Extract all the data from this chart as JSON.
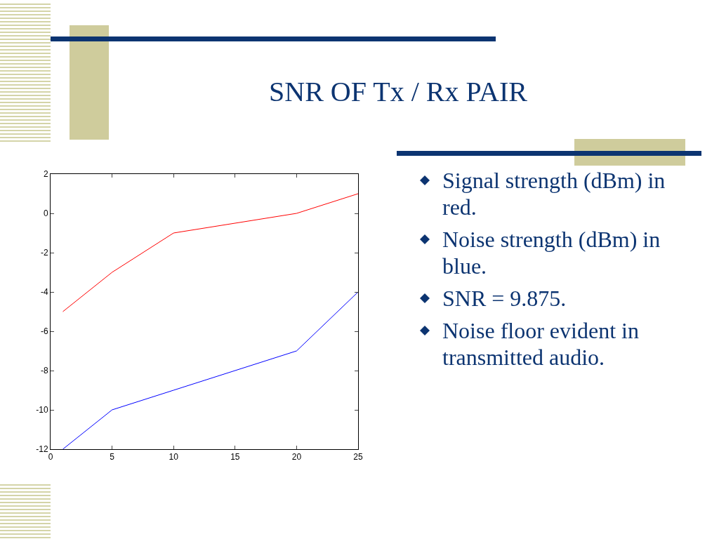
{
  "chart_data": {
    "type": "line",
    "title": "SNR OF Tx / Rx PAIR",
    "x": [
      1,
      5,
      10,
      20,
      25
    ],
    "series": [
      {
        "color": "#ff0000",
        "values": [
          -5,
          -3,
          -1,
          0,
          1
        ]
      },
      {
        "color": "#0000ff",
        "values": [
          -12,
          -10,
          -9,
          -7,
          -4
        ]
      }
    ],
    "xlim": [
      0,
      25
    ],
    "xticks": [
      0,
      5,
      10,
      15,
      20,
      25
    ],
    "ylim": [
      -12,
      2
    ],
    "yticks": [
      -12,
      -10,
      -8,
      -6,
      -4,
      -2,
      0,
      2
    ],
    "grid": false,
    "legend": false,
    "marker": "none",
    "line_style": "solid",
    "annotations": [
      "Signal strength (dBm) in red.",
      "Noise strength (dBm) in blue.",
      "SNR = 9.875.",
      "Noise floor evident in transmitted audio."
    ]
  }
}
